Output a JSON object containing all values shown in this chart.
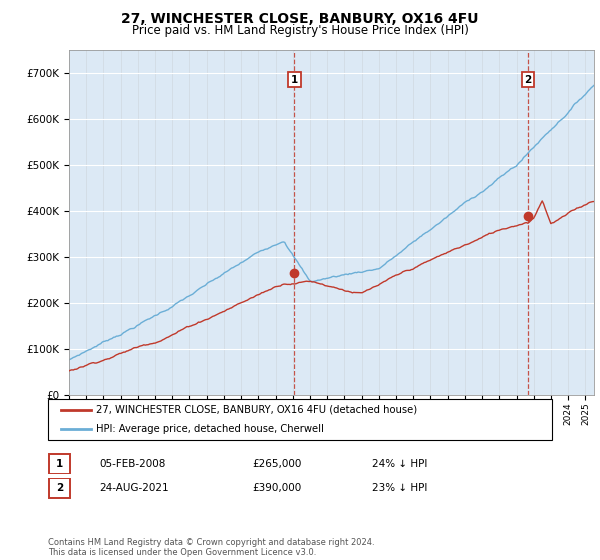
{
  "title1": "27, WINCHESTER CLOSE, BANBURY, OX16 4FU",
  "title2": "Price paid vs. HM Land Registry's House Price Index (HPI)",
  "ylim": [
    0,
    750000
  ],
  "yticks": [
    0,
    100000,
    200000,
    300000,
    400000,
    500000,
    600000,
    700000
  ],
  "ytick_labels": [
    "£0",
    "£100K",
    "£200K",
    "£300K",
    "£400K",
    "£500K",
    "£600K",
    "£700K"
  ],
  "sale1_date_x": 2008.09,
  "sale1_price": 265000,
  "sale2_date_x": 2021.65,
  "sale2_price": 390000,
  "sale1_text": "05-FEB-2008",
  "sale1_price_text": "£265,000",
  "sale1_pct": "24% ↓ HPI",
  "sale2_text": "24-AUG-2021",
  "sale2_price_text": "£390,000",
  "sale2_pct": "23% ↓ HPI",
  "legend_line1": "27, WINCHESTER CLOSE, BANBURY, OX16 4FU (detached house)",
  "legend_line2": "HPI: Average price, detached house, Cherwell",
  "footer": "Contains HM Land Registry data © Crown copyright and database right 2024.\nThis data is licensed under the Open Government Licence v3.0.",
  "hpi_color": "#6baed6",
  "price_color": "#c0392b",
  "plot_bg": "#dce9f5",
  "xmin": 1995,
  "xmax": 2025.5
}
